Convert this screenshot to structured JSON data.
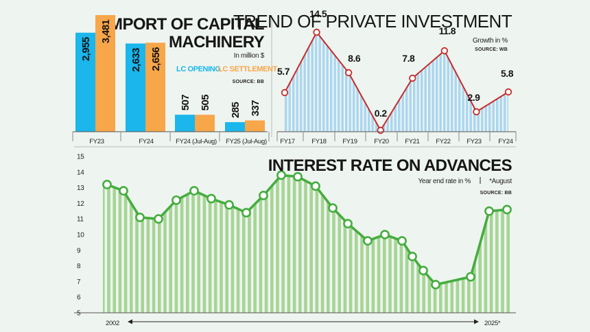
{
  "colors": {
    "background": "#eef4ef",
    "lc_opening": "#1ab6ec",
    "lc_settlement": "#f7a64a",
    "investment_line": "#c62b2b",
    "investment_fill": "#a9d6f1",
    "interest_line": "#45ad3f",
    "interest_fill": "#a6d595"
  },
  "chart_data": [
    {
      "id": "import",
      "type": "bar",
      "title_line1": "IMPORT OF CAPITAL",
      "title_line2": "MACHINERY",
      "unit_label": "In million $",
      "source": "SOURCE: BB",
      "categories": [
        "FY23",
        "FY24",
        "FY24 (Jul-Aug)",
        "FY25 (Jul-Aug)"
      ],
      "series": [
        {
          "name": "LC OPENING",
          "values": [
            2955,
            2633,
            507,
            285
          ],
          "labels": [
            "2,955",
            "2,633",
            "507",
            "285"
          ]
        },
        {
          "name": "LC SETTLEMENT",
          "values": [
            3481,
            2656,
            505,
            337
          ],
          "labels": [
            "3,481",
            "2,656",
            "505",
            "337"
          ]
        }
      ],
      "ylim": [
        0,
        3481
      ]
    },
    {
      "id": "investment",
      "type": "area",
      "title": "TREND OF PRIVATE INVESTMENT",
      "unit_label": "Growth in %",
      "source": "SOURCE: WB",
      "x": [
        "FY17",
        "FY18",
        "FY19",
        "FY20",
        "FY21",
        "FY22",
        "FY23",
        "FY24"
      ],
      "values": [
        5.7,
        14.5,
        8.6,
        0.2,
        7.8,
        11.8,
        2.9,
        5.8
      ],
      "labels": [
        "5.7",
        "14.5",
        "8.6",
        "0.2",
        "7.8",
        "11.8",
        "2.9",
        "5.8"
      ],
      "ylim": [
        0,
        17
      ]
    },
    {
      "id": "interest",
      "type": "area",
      "title": "INTEREST RATE ON ADVANCES",
      "unit_label": "Year end rate in %",
      "note": "*August",
      "source": "SOURCE: BB",
      "x_start": "2002",
      "x_end": "2025*",
      "values": [
        13.2,
        12.8,
        11.1,
        11.0,
        12.2,
        12.8,
        12.3,
        11.9,
        11.4,
        12.5,
        13.8,
        13.7,
        13.1,
        11.7,
        10.7,
        9.6,
        10.0,
        9.6,
        8.6,
        7.7,
        6.8,
        7.3,
        11.5,
        11.6
      ],
      "y_ticks": [
        "15",
        "14",
        "13",
        "12",
        "11",
        "10",
        "9",
        "8",
        "7",
        "6",
        "5"
      ],
      "ylim": [
        5,
        15
      ]
    }
  ]
}
